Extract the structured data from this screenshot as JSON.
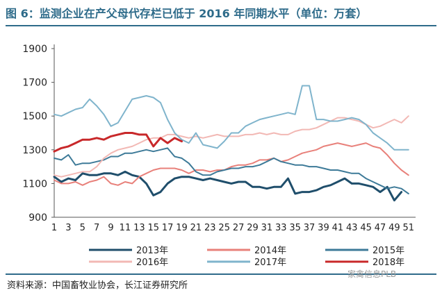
{
  "header": {
    "title": "图 6：监测企业在产父母代存栏已低于 2016 年同期水平（单位：万套）"
  },
  "footer": {
    "source": "资料来源：中国畜牧业协会，长江证券研究所",
    "watermark": "家禽信息PLB"
  },
  "chart_data": {
    "type": "line",
    "ylim": [
      900,
      1900
    ],
    "yticks": [
      900,
      1100,
      1300,
      1500,
      1700,
      1900
    ],
    "xlim": [
      1,
      52
    ],
    "xtick_labels": [
      "1",
      "3",
      "5",
      "7",
      "9",
      "11",
      "13",
      "15",
      "17",
      "19",
      "21",
      "23",
      "25",
      "27",
      "29",
      "31",
      "33",
      "35",
      "37",
      "39",
      "41",
      "43",
      "45",
      "47",
      "49",
      "51"
    ],
    "grid": false,
    "legend_position": "bottom",
    "series": [
      {
        "name": "2013年",
        "color": "#1f4e6b",
        "width": 3,
        "values": [
          1140,
          1110,
          1130,
          1120,
          1160,
          1150,
          1150,
          1160,
          1160,
          1150,
          1170,
          1150,
          1140,
          1100,
          1030,
          1050,
          1100,
          1130,
          1140,
          1140,
          1130,
          1120,
          1130,
          1120,
          1110,
          1100,
          1110,
          1110,
          1080,
          1080,
          1070,
          1080,
          1080,
          1130,
          1040,
          1050,
          1050,
          1060,
          1080,
          1090,
          1110,
          1130,
          1100,
          1100,
          1090,
          1080,
          1050,
          1080,
          1000,
          1050,
          null
        ]
      },
      {
        "name": "2014年",
        "color": "#e8807a",
        "width": 2,
        "values": [
          1120,
          1100,
          1100,
          1110,
          1090,
          1110,
          1120,
          1140,
          1100,
          1090,
          1110,
          1100,
          1140,
          1160,
          1180,
          1190,
          1190,
          1190,
          1180,
          1160,
          1180,
          1180,
          1170,
          1180,
          1180,
          1200,
          1210,
          1210,
          1220,
          1240,
          1240,
          1250,
          1230,
          1240,
          1260,
          1280,
          1290,
          1300,
          1320,
          1330,
          1340,
          1330,
          1320,
          1330,
          1340,
          1320,
          1310,
          1270,
          1220,
          1180,
          1150
        ]
      },
      {
        "name": "2015年",
        "color": "#3d7a98",
        "width": 2,
        "values": [
          1250,
          1240,
          1270,
          1210,
          1220,
          1220,
          1230,
          1240,
          1260,
          1260,
          1280,
          1280,
          1290,
          1300,
          1290,
          1300,
          1310,
          1260,
          1250,
          1220,
          1170,
          1150,
          1150,
          1170,
          1180,
          1190,
          1190,
          1200,
          1200,
          1210,
          1230,
          1250,
          1230,
          1220,
          1210,
          1210,
          1200,
          1200,
          1190,
          1180,
          1180,
          1170,
          1160,
          1160,
          1130,
          1110,
          1090,
          1070,
          1080,
          1070,
          1040
        ]
      },
      {
        "name": "2016年",
        "color": "#f2b8b4",
        "width": 2,
        "values": [
          1150,
          1140,
          1150,
          1160,
          1170,
          1170,
          1200,
          1250,
          1280,
          1300,
          1310,
          1320,
          1340,
          1360,
          1370,
          1370,
          1390,
          1390,
          1380,
          1370,
          1380,
          1370,
          1380,
          1390,
          1380,
          1380,
          1380,
          1390,
          1390,
          1400,
          1390,
          1400,
          1390,
          1390,
          1410,
          1420,
          1420,
          1430,
          1450,
          1470,
          1490,
          1490,
          1480,
          1470,
          1450,
          1430,
          1440,
          1460,
          1480,
          1460,
          1500
        ]
      },
      {
        "name": "2017年",
        "color": "#7fb4cc",
        "width": 2,
        "values": [
          1510,
          1500,
          1520,
          1540,
          1550,
          1600,
          1560,
          1510,
          1440,
          1460,
          1530,
          1600,
          1610,
          1620,
          1610,
          1580,
          1480,
          1400,
          1360,
          1340,
          1400,
          1330,
          1320,
          1310,
          1350,
          1400,
          1400,
          1440,
          1460,
          1480,
          1490,
          1500,
          1510,
          1520,
          1510,
          1680,
          1680,
          1480,
          1480,
          1470,
          1470,
          1480,
          1490,
          1480,
          1450,
          1400,
          1370,
          1340,
          1300,
          1300,
          1300
        ]
      },
      {
        "name": "2018年",
        "color": "#c8282a",
        "width": 3,
        "values": [
          1290,
          1310,
          1320,
          1340,
          1360,
          1360,
          1370,
          1360,
          1380,
          1390,
          1400,
          1400,
          1390,
          1390,
          1320,
          1370,
          1340,
          1370,
          1350,
          null,
          null,
          null,
          null,
          null,
          null,
          null,
          null,
          null,
          null,
          null,
          null,
          null,
          null,
          null,
          null,
          null,
          null,
          null,
          null,
          null,
          null,
          null,
          null,
          null,
          null,
          null,
          null,
          null,
          null,
          null,
          null
        ]
      }
    ]
  }
}
